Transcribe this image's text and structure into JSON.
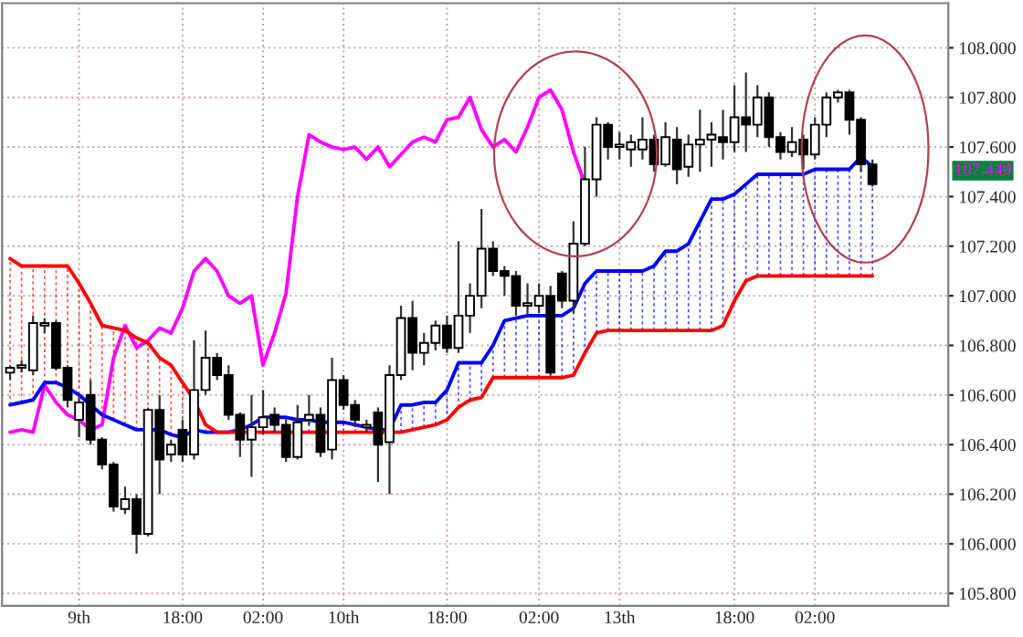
{
  "chart_data": {
    "type": "candlestick",
    "categories": [
      null,
      null,
      null,
      null,
      null,
      null,
      "9th",
      null,
      null,
      null,
      null,
      null,
      null,
      null,
      null,
      "18:00",
      null,
      null,
      null,
      null,
      null,
      null,
      "02:00",
      null,
      null,
      null,
      null,
      null,
      null,
      "10th",
      null,
      null,
      null,
      null,
      null,
      null,
      null,
      null,
      "18:00",
      null,
      null,
      null,
      null,
      null,
      null,
      null,
      "02:00",
      null,
      null,
      null,
      null,
      null,
      null,
      "13th",
      null,
      null,
      null,
      null,
      null,
      null,
      null,
      null,
      null,
      "18:00",
      null,
      null,
      null,
      null,
      null,
      null,
      "02:00",
      null,
      null,
      null,
      null,
      null
    ],
    "ohlc": [
      [
        106.69,
        106.72,
        106.66,
        106.71
      ],
      [
        106.71,
        106.74,
        106.69,
        106.72
      ],
      [
        106.7,
        106.92,
        106.68,
        106.89
      ],
      [
        106.88,
        106.91,
        106.85,
        106.89
      ],
      [
        106.89,
        106.9,
        106.7,
        106.71
      ],
      [
        106.71,
        106.72,
        106.55,
        106.58
      ],
      [
        106.5,
        106.6,
        106.43,
        106.57
      ],
      [
        106.6,
        106.66,
        106.4,
        106.42
      ],
      [
        106.42,
        106.43,
        106.3,
        106.32
      ],
      [
        106.32,
        106.33,
        106.13,
        106.15
      ],
      [
        106.14,
        106.23,
        106.12,
        106.18
      ],
      [
        106.18,
        106.2,
        105.96,
        106.04
      ],
      [
        106.04,
        106.55,
        106.03,
        106.54
      ],
      [
        106.54,
        106.6,
        106.2,
        106.34
      ],
      [
        106.36,
        106.42,
        106.33,
        106.4
      ],
      [
        106.46,
        106.5,
        106.33,
        106.36
      ],
      [
        106.36,
        106.82,
        106.34,
        106.62
      ],
      [
        106.62,
        106.86,
        106.6,
        106.75
      ],
      [
        106.75,
        106.77,
        106.66,
        106.68
      ],
      [
        106.68,
        106.72,
        106.5,
        106.52
      ],
      [
        106.52,
        106.53,
        106.35,
        106.42
      ],
      [
        106.42,
        106.6,
        106.27,
        106.47
      ],
      [
        106.47,
        106.62,
        106.44,
        106.51
      ],
      [
        106.52,
        106.55,
        106.45,
        106.48
      ],
      [
        106.48,
        106.5,
        106.33,
        106.35
      ],
      [
        106.35,
        106.56,
        106.34,
        106.49
      ],
      [
        106.5,
        106.6,
        106.48,
        106.52
      ],
      [
        106.52,
        106.55,
        106.35,
        106.37
      ],
      [
        106.38,
        106.75,
        106.34,
        106.66
      ],
      [
        106.66,
        106.68,
        106.54,
        106.56
      ],
      [
        106.56,
        106.58,
        106.47,
        106.5
      ],
      [
        106.47,
        106.5,
        106.45,
        106.48
      ],
      [
        106.53,
        106.55,
        106.25,
        106.4
      ],
      [
        106.41,
        106.72,
        106.2,
        106.68
      ],
      [
        106.68,
        106.96,
        106.66,
        106.91
      ],
      [
        106.91,
        106.98,
        106.7,
        106.77
      ],
      [
        106.77,
        106.85,
        106.72,
        106.81
      ],
      [
        106.81,
        106.9,
        106.78,
        106.88
      ],
      [
        106.88,
        106.92,
        106.77,
        106.79
      ],
      [
        106.79,
        107.22,
        106.77,
        106.92
      ],
      [
        106.92,
        107.05,
        106.85,
        107.0
      ],
      [
        107.0,
        107.35,
        106.95,
        107.19
      ],
      [
        107.19,
        107.22,
        107.08,
        107.1
      ],
      [
        107.1,
        107.12,
        107.0,
        107.08
      ],
      [
        107.08,
        107.1,
        106.92,
        106.96
      ],
      [
        106.96,
        107.05,
        106.92,
        106.97
      ],
      [
        106.96,
        107.05,
        106.93,
        107.0
      ],
      [
        107.0,
        107.04,
        106.68,
        106.69
      ],
      [
        107.09,
        107.1,
        106.95,
        106.98
      ],
      [
        106.98,
        107.3,
        106.93,
        107.21
      ],
      [
        107.21,
        107.6,
        107.2,
        107.47
      ],
      [
        107.47,
        107.72,
        107.4,
        107.69
      ],
      [
        107.69,
        107.7,
        107.55,
        107.6
      ],
      [
        107.6,
        107.66,
        107.55,
        107.61
      ],
      [
        107.59,
        107.65,
        107.52,
        107.62
      ],
      [
        107.59,
        107.72,
        107.55,
        107.63
      ],
      [
        107.63,
        107.65,
        107.5,
        107.53
      ],
      [
        107.53,
        107.7,
        107.52,
        107.64
      ],
      [
        107.63,
        107.68,
        107.45,
        107.51
      ],
      [
        107.52,
        107.65,
        107.48,
        107.61
      ],
      [
        107.61,
        107.75,
        107.5,
        107.63
      ],
      [
        107.63,
        107.7,
        107.52,
        107.65
      ],
      [
        107.64,
        107.75,
        107.55,
        107.62
      ],
      [
        107.62,
        107.85,
        107.58,
        107.72
      ],
      [
        107.72,
        107.9,
        107.58,
        107.69
      ],
      [
        107.69,
        107.85,
        107.64,
        107.8
      ],
      [
        107.8,
        107.82,
        107.6,
        107.64
      ],
      [
        107.64,
        107.66,
        107.55,
        107.58
      ],
      [
        107.58,
        107.68,
        107.56,
        107.62
      ],
      [
        107.63,
        107.65,
        107.51,
        107.57
      ],
      [
        107.57,
        107.72,
        107.55,
        107.69
      ],
      [
        107.69,
        107.82,
        107.64,
        107.8
      ],
      [
        107.8,
        107.83,
        107.78,
        107.82
      ],
      [
        107.82,
        107.83,
        107.65,
        107.71
      ],
      [
        107.71,
        107.72,
        107.5,
        107.53
      ],
      [
        107.53,
        107.55,
        107.44,
        107.45
      ]
    ],
    "series": [
      {
        "type": "line",
        "color": "#ff00ff",
        "values": [
          106.45,
          106.46,
          106.45,
          106.64,
          106.57,
          106.52,
          106.5,
          106.46,
          106.48,
          106.75,
          106.88,
          106.79,
          106.82,
          106.87,
          106.85,
          106.95,
          107.1,
          107.15,
          107.1,
          107.0,
          106.97,
          107.0,
          106.72,
          106.85,
          107.01,
          107.4,
          107.65,
          107.62,
          107.6,
          107.59,
          107.6,
          107.55,
          107.6,
          107.52,
          107.57,
          107.62,
          107.64,
          107.62,
          107.71,
          107.72,
          107.8,
          107.67,
          107.6,
          107.63,
          107.58,
          107.68,
          107.8,
          107.83,
          107.75,
          107.58,
          107.45,
          null,
          null,
          null,
          null,
          null,
          null,
          null,
          null,
          null,
          null,
          null,
          null,
          null,
          null,
          null,
          null,
          null,
          null,
          null,
          null,
          null,
          null,
          null,
          null,
          null
        ]
      },
      {
        "type": "line",
        "color": "#0000ff",
        "values": [
          106.56,
          106.57,
          106.58,
          106.65,
          106.65,
          106.63,
          106.6,
          106.56,
          106.52,
          106.5,
          106.48,
          106.46,
          106.46,
          106.46,
          106.44,
          106.43,
          106.46,
          106.45,
          106.45,
          106.45,
          106.46,
          106.48,
          106.51,
          106.51,
          106.51,
          106.5,
          106.5,
          106.49,
          106.49,
          106.49,
          106.48,
          106.47,
          106.46,
          106.46,
          106.56,
          106.56,
          106.57,
          106.57,
          106.62,
          106.73,
          106.73,
          106.73,
          106.8,
          106.9,
          106.91,
          106.92,
          106.92,
          106.92,
          106.92,
          106.95,
          107.05,
          107.1,
          107.1,
          107.1,
          107.1,
          107.1,
          107.12,
          107.18,
          107.18,
          107.21,
          107.3,
          107.39,
          107.39,
          107.41,
          107.45,
          107.49,
          107.49,
          107.49,
          107.49,
          107.49,
          107.51,
          107.51,
          107.51,
          107.51,
          107.56,
          107.52
        ]
      },
      {
        "type": "line",
        "color": "#ff0000",
        "values": [
          107.15,
          107.12,
          107.12,
          107.12,
          107.12,
          107.12,
          107.05,
          106.97,
          106.88,
          106.87,
          106.86,
          106.83,
          106.81,
          106.75,
          106.72,
          106.65,
          106.58,
          106.48,
          106.45,
          106.45,
          106.45,
          106.45,
          106.45,
          106.45,
          106.45,
          106.45,
          106.45,
          106.45,
          106.45,
          106.45,
          106.45,
          106.45,
          106.45,
          106.45,
          106.45,
          106.46,
          106.47,
          106.48,
          106.5,
          106.55,
          106.58,
          106.59,
          106.67,
          106.67,
          106.67,
          106.67,
          106.67,
          106.67,
          106.67,
          106.68,
          106.77,
          106.85,
          106.86,
          106.86,
          106.86,
          106.86,
          106.86,
          106.86,
          106.86,
          106.86,
          106.86,
          106.86,
          106.88,
          106.98,
          107.06,
          107.08,
          107.08,
          107.08,
          107.08,
          107.08,
          107.08,
          107.08,
          107.08,
          107.08,
          107.08,
          107.08
        ]
      }
    ],
    "ylim": [
      105.75,
      108.18
    ],
    "yticks": [
      {
        "value": 105.8,
        "label": "105.800"
      },
      {
        "value": 106.0,
        "label": "106.000"
      },
      {
        "value": 106.2,
        "label": "106.200"
      },
      {
        "value": 106.4,
        "label": "106.400"
      },
      {
        "value": 106.6,
        "label": "106.600"
      },
      {
        "value": 106.8,
        "label": "106.800"
      },
      {
        "value": 107.0,
        "label": "107.000"
      },
      {
        "value": 107.2,
        "label": "107.200"
      },
      {
        "value": 107.4,
        "label": "107.400"
      },
      {
        "value": 107.6,
        "label": "107.600"
      },
      {
        "value": 107.8,
        "label": "107.800"
      },
      {
        "value": 108.0,
        "label": "108.000"
      }
    ],
    "grid": true,
    "annotations": [
      "107.449"
    ]
  }
}
